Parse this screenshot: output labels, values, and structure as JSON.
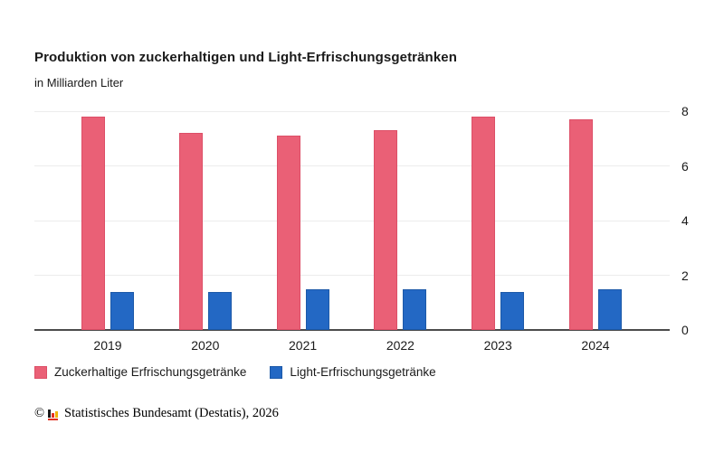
{
  "header": {
    "title": "Produktion von zuckerhaltigen und Light-Erfrischungsgetränken",
    "subtitle": "in Milliarden Liter"
  },
  "chart_data": {
    "type": "bar",
    "categories": [
      "2019",
      "2020",
      "2021",
      "2022",
      "2023",
      "2024"
    ],
    "series": [
      {
        "name": "Zuckerhaltige Erfrischungsgetränke",
        "color": "#ea6076",
        "border_color": "#dd4f67",
        "values": [
          7.8,
          7.2,
          7.1,
          7.3,
          7.8,
          7.7
        ]
      },
      {
        "name": "Light-Erfrischungsgetränke",
        "color": "#2368c4",
        "border_color": "#1c59a8",
        "values": [
          1.4,
          1.4,
          1.5,
          1.5,
          1.4,
          1.5
        ]
      }
    ],
    "title": "Produktion von zuckerhaltigen und Light-Erfrischungsgetränken",
    "xlabel": "",
    "ylabel": "in Milliarden Liter",
    "ylim": [
      0,
      8
    ],
    "yticks": [
      0,
      2,
      4,
      6,
      8
    ],
    "ytick_side": "right",
    "grid": true,
    "grid_color": "#ececec",
    "axis_color": "#4b4b4b",
    "legend_position": "bottom"
  },
  "legend": {
    "items": [
      {
        "label": "Zuckerhaltige Erfrischungsgetränke",
        "color": "#ea6076",
        "border_color": "#dd4f67"
      },
      {
        "label": "Light-Erfrischungsgetränke",
        "color": "#2368c4",
        "border_color": "#1c59a8"
      }
    ]
  },
  "footer": {
    "copyright_symbol": "©",
    "logo_icon": "destatis-logo-icon",
    "text": "Statistisches Bundesamt (Destatis), 2026"
  }
}
